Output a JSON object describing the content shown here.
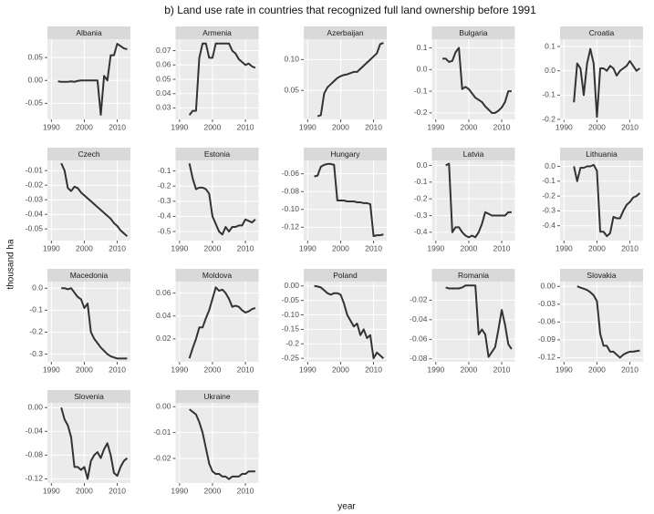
{
  "title": "b) Land use rate in countries that recognized full land ownership before 1991",
  "xlabel": "year",
  "ylabel": "thousand ha",
  "chart_data": [
    {
      "type": "line",
      "title": "Albania",
      "x": [
        1992,
        1993,
        1994,
        1995,
        1996,
        1997,
        1998,
        1999,
        2000,
        2001,
        2002,
        2003,
        2004,
        2005,
        2006,
        2007,
        2008,
        2009,
        2010,
        2011,
        2012,
        2013
      ],
      "values": [
        -0.002,
        -0.003,
        -0.003,
        -0.003,
        -0.002,
        -0.003,
        -0.001,
        0,
        0,
        0,
        0,
        0,
        0,
        -0.075,
        0.01,
        0,
        0.055,
        0.055,
        0.08,
        0.075,
        0.07,
        0.068
      ],
      "xlim": [
        1988.8,
        2014
      ],
      "xticks": [
        1990,
        2000,
        2010
      ],
      "ylim": [
        -0.085,
        0.09
      ],
      "yticks": [
        -0.05,
        {
          "value": 0,
          "label": "0.00"
        },
        0.05
      ]
    },
    {
      "type": "line",
      "title": "Armenia",
      "x": [
        1993,
        1994,
        1995,
        1996,
        1997,
        1998,
        1999,
        2000,
        2001,
        2002,
        2003,
        2004,
        2005,
        2006,
        2007,
        2008,
        2009,
        2010,
        2011,
        2012,
        2013
      ],
      "values": [
        0.025,
        0.028,
        0.028,
        0.065,
        0.075,
        0.075,
        0.065,
        0.065,
        0.075,
        0.075,
        0.075,
        0.075,
        0.075,
        0.07,
        0.068,
        0.064,
        0.062,
        0.06,
        0.061,
        0.059,
        0.058
      ],
      "xlim": [
        1988.8,
        2014
      ],
      "xticks": [
        1990,
        2000,
        2010
      ],
      "ylim": [
        0.022,
        0.078
      ],
      "yticks": [
        0.03,
        0.04,
        0.05,
        0.06,
        0.07
      ]
    },
    {
      "type": "line",
      "title": "Azerbaijan",
      "x": [
        1993,
        1994,
        1995,
        1996,
        1997,
        1998,
        1999,
        2000,
        2001,
        2002,
        2003,
        2004,
        2005,
        2006,
        2007,
        2008,
        2009,
        2010,
        2011,
        2012,
        2013
      ],
      "values": [
        0.008,
        0.01,
        0.045,
        0.055,
        0.06,
        0.065,
        0.07,
        0.073,
        0.075,
        0.076,
        0.078,
        0.08,
        0.08,
        0.085,
        0.09,
        0.095,
        0.1,
        0.105,
        0.11,
        0.125,
        0.127
      ],
      "xlim": [
        1988.8,
        2014
      ],
      "xticks": [
        1990,
        2000,
        2010
      ],
      "ylim": [
        0.003,
        0.133
      ],
      "yticks": [
        0.05,
        {
          "value": 0.1,
          "label": "0.10"
        }
      ]
    },
    {
      "type": "line",
      "title": "Bulgaria",
      "x": [
        1992,
        1993,
        1994,
        1995,
        1996,
        1997,
        1998,
        1999,
        2000,
        2001,
        2002,
        2003,
        2004,
        2005,
        2006,
        2007,
        2008,
        2009,
        2010,
        2011,
        2012,
        2013
      ],
      "values": [
        0.05,
        0.05,
        0.035,
        0.04,
        0.08,
        0.1,
        -0.09,
        -0.08,
        -0.09,
        -0.11,
        -0.13,
        -0.14,
        -0.15,
        -0.17,
        -0.185,
        -0.2,
        -0.2,
        -0.19,
        -0.175,
        -0.15,
        -0.1,
        -0.1
      ],
      "xlim": [
        1988.8,
        2014
      ],
      "xticks": [
        1990,
        2000,
        2010
      ],
      "ylim": [
        -0.23,
        0.14
      ],
      "yticks": [
        -0.2,
        -0.1,
        {
          "value": 0,
          "label": "0.0"
        },
        0.1
      ]
    },
    {
      "type": "line",
      "title": "Croatia",
      "x": [
        1993,
        1994,
        1995,
        1996,
        1997,
        1998,
        1999,
        2000,
        2001,
        2002,
        2003,
        2004,
        2005,
        2006,
        2007,
        2008,
        2009,
        2010,
        2011,
        2012,
        2013
      ],
      "values": [
        -0.13,
        0.03,
        0.01,
        -0.1,
        0.03,
        0.09,
        0.03,
        -0.19,
        0.01,
        0.01,
        0,
        0.02,
        0.01,
        -0.02,
        0,
        0.01,
        0.02,
        0.04,
        0.02,
        0,
        0.01
      ],
      "xlim": [
        1988.8,
        2014
      ],
      "xticks": [
        1990,
        2000,
        2010
      ],
      "ylim": [
        -0.2,
        0.13
      ],
      "yticks": [
        -0.2,
        -0.1,
        {
          "value": 0,
          "label": "0.0"
        },
        0.1
      ]
    },
    {
      "type": "line",
      "title": "Czech",
      "x": [
        1993,
        1994,
        1995,
        1996,
        1997,
        1998,
        1999,
        2000,
        2001,
        2002,
        2003,
        2004,
        2005,
        2006,
        2007,
        2008,
        2009,
        2010,
        2011,
        2012,
        2013
      ],
      "values": [
        -0.005,
        -0.01,
        -0.022,
        -0.024,
        -0.021,
        -0.022,
        -0.025,
        -0.027,
        -0.029,
        -0.031,
        -0.033,
        -0.035,
        -0.037,
        -0.039,
        -0.041,
        -0.043,
        -0.046,
        -0.048,
        -0.051,
        -0.053,
        -0.055
      ],
      "xlim": [
        1988.8,
        2014
      ],
      "xticks": [
        1990,
        2000,
        2010
      ],
      "ylim": [
        -0.058,
        -0.003
      ],
      "yticks": [
        -0.05,
        -0.04,
        -0.03,
        -0.02,
        -0.01
      ]
    },
    {
      "type": "line",
      "title": "Estonia",
      "x": [
        1993,
        1994,
        1995,
        1996,
        1997,
        1998,
        1999,
        2000,
        2001,
        2002,
        2003,
        2004,
        2005,
        2006,
        2007,
        2008,
        2009,
        2010,
        2011,
        2012,
        2013
      ],
      "values": [
        -0.05,
        -0.15,
        -0.22,
        -0.21,
        -0.21,
        -0.22,
        -0.25,
        -0.4,
        -0.45,
        -0.5,
        -0.52,
        -0.47,
        -0.5,
        -0.47,
        -0.47,
        -0.46,
        -0.46,
        -0.42,
        -0.43,
        -0.44,
        -0.42
      ],
      "xlim": [
        1988.8,
        2014
      ],
      "xticks": [
        1990,
        2000,
        2010
      ],
      "ylim": [
        -0.56,
        -0.03
      ],
      "yticks": [
        -0.5,
        -0.4,
        -0.3,
        -0.2,
        -0.1
      ]
    },
    {
      "type": "line",
      "title": "Hungary",
      "x": [
        1992,
        1993,
        1994,
        1995,
        1996,
        1997,
        1998,
        1999,
        2000,
        2001,
        2002,
        2003,
        2004,
        2005,
        2006,
        2007,
        2008,
        2009,
        2010,
        2011,
        2012,
        2013
      ],
      "values": [
        -0.063,
        -0.062,
        -0.052,
        -0.05,
        -0.049,
        -0.049,
        -0.05,
        -0.09,
        -0.09,
        -0.09,
        -0.091,
        -0.091,
        -0.091,
        -0.092,
        -0.092,
        -0.093,
        -0.093,
        -0.094,
        -0.13,
        -0.129,
        -0.129,
        -0.128
      ],
      "xlim": [
        1988.8,
        2014
      ],
      "xticks": [
        1990,
        2000,
        2010
      ],
      "ylim": [
        -0.135,
        -0.045
      ],
      "yticks": [
        -0.12,
        {
          "value": -0.1,
          "label": "-0.10"
        },
        -0.08,
        -0.06
      ]
    },
    {
      "type": "line",
      "title": "Latvia",
      "x": [
        1993,
        1994,
        1995,
        1996,
        1997,
        1998,
        1999,
        2000,
        2001,
        2002,
        2003,
        2004,
        2005,
        2006,
        2007,
        2008,
        2009,
        2010,
        2011,
        2012,
        2013
      ],
      "values": [
        0,
        0.01,
        -0.4,
        -0.37,
        -0.37,
        -0.4,
        -0.42,
        -0.43,
        -0.42,
        -0.43,
        -0.4,
        -0.35,
        -0.28,
        -0.29,
        -0.3,
        -0.3,
        -0.3,
        -0.3,
        -0.3,
        -0.28,
        -0.28
      ],
      "xlim": [
        1988.8,
        2014
      ],
      "xticks": [
        1990,
        2000,
        2010
      ],
      "ylim": [
        -0.45,
        0.03
      ],
      "yticks": [
        -0.4,
        -0.3,
        -0.2,
        -0.1,
        {
          "value": 0,
          "label": "0.0"
        }
      ]
    },
    {
      "type": "line",
      "title": "Lithuania",
      "x": [
        1993,
        1994,
        1995,
        1996,
        1997,
        1998,
        1999,
        2000,
        2001,
        2002,
        2003,
        2004,
        2005,
        2006,
        2007,
        2008,
        2009,
        2010,
        2011,
        2012,
        2013
      ],
      "values": [
        0,
        -0.1,
        -0.01,
        -0.01,
        0,
        0,
        0.01,
        -0.03,
        -0.44,
        -0.44,
        -0.47,
        -0.45,
        -0.34,
        -0.35,
        -0.35,
        -0.3,
        -0.26,
        -0.24,
        -0.21,
        -0.2,
        -0.18
      ],
      "xlim": [
        1988.8,
        2014
      ],
      "xticks": [
        1990,
        2000,
        2010
      ],
      "ylim": [
        -0.5,
        0.04
      ],
      "yticks": [
        -0.4,
        -0.3,
        -0.2,
        -0.1,
        {
          "value": 0,
          "label": "0.0"
        }
      ]
    },
    {
      "type": "line",
      "title": "Macedonia",
      "x": [
        1993,
        1994,
        1995,
        1996,
        1997,
        1998,
        1999,
        2000,
        2001,
        2002,
        2003,
        2004,
        2005,
        2006,
        2007,
        2008,
        2009,
        2010,
        2011,
        2012,
        2013
      ],
      "values": [
        0,
        0,
        -0.005,
        0,
        -0.02,
        -0.04,
        -0.05,
        -0.09,
        -0.07,
        -0.2,
        -0.23,
        -0.25,
        -0.27,
        -0.285,
        -0.3,
        -0.31,
        -0.315,
        -0.32,
        -0.32,
        -0.32,
        -0.32
      ],
      "xlim": [
        1988.8,
        2014
      ],
      "xticks": [
        1990,
        2000,
        2010
      ],
      "ylim": [
        -0.335,
        0.03
      ],
      "yticks": [
        -0.3,
        -0.2,
        -0.1,
        {
          "value": 0,
          "label": "0.0"
        }
      ]
    },
    {
      "type": "line",
      "title": "Moldova",
      "x": [
        1993,
        1994,
        1995,
        1996,
        1997,
        1998,
        1999,
        2000,
        2001,
        2002,
        2003,
        2004,
        2005,
        2006,
        2007,
        2008,
        2009,
        2010,
        2011,
        2012,
        2013
      ],
      "values": [
        0.003,
        0.012,
        0.02,
        0.03,
        0.03,
        0.038,
        0.045,
        0.055,
        0.065,
        0.062,
        0.063,
        0.06,
        0.055,
        0.048,
        0.049,
        0.048,
        0.045,
        0.043,
        0.044,
        0.046,
        0.047
      ],
      "xlim": [
        1988.8,
        2014
      ],
      "xticks": [
        1990,
        2000,
        2010
      ],
      "ylim": [
        0,
        0.07
      ],
      "yticks": [
        0.02,
        0.04,
        0.06
      ]
    },
    {
      "type": "line",
      "title": "Poland",
      "x": [
        1992,
        1993,
        1994,
        1995,
        1996,
        1997,
        1998,
        1999,
        2000,
        2001,
        2002,
        2003,
        2004,
        2005,
        2006,
        2007,
        2008,
        2009,
        2010,
        2011,
        2012,
        2013
      ],
      "values": [
        0,
        -0.002,
        -0.005,
        -0.015,
        -0.025,
        -0.03,
        -0.025,
        -0.025,
        -0.03,
        -0.06,
        -0.1,
        -0.12,
        -0.14,
        -0.13,
        -0.17,
        -0.15,
        -0.18,
        -0.17,
        -0.25,
        -0.23,
        -0.24,
        -0.25
      ],
      "xlim": [
        1988.8,
        2014
      ],
      "xticks": [
        1990,
        2000,
        2010
      ],
      "ylim": [
        -0.262,
        0.015
      ],
      "yticks": [
        -0.25,
        -0.2,
        -0.15,
        {
          "value": -0.1,
          "label": "-0.10"
        },
        -0.05,
        {
          "value": 0,
          "label": "0.00"
        }
      ]
    },
    {
      "type": "line",
      "title": "Romania",
      "x": [
        1993,
        1994,
        1995,
        1996,
        1997,
        1998,
        1999,
        2000,
        2001,
        2002,
        2003,
        2004,
        2005,
        2006,
        2007,
        2008,
        2009,
        2010,
        2011,
        2012,
        2013
      ],
      "values": [
        -0.007,
        -0.008,
        -0.008,
        -0.008,
        -0.008,
        -0.007,
        -0.005,
        -0.005,
        -0.005,
        -0.005,
        -0.055,
        -0.05,
        -0.055,
        -0.078,
        -0.073,
        -0.068,
        -0.05,
        -0.03,
        -0.045,
        -0.065,
        -0.07
      ],
      "xlim": [
        1988.8,
        2014
      ],
      "xticks": [
        1990,
        2000,
        2010
      ],
      "ylim": [
        -0.083,
        -0.001
      ],
      "yticks": [
        -0.08,
        -0.06,
        -0.04,
        -0.02
      ]
    },
    {
      "type": "line",
      "title": "Slovakia",
      "x": [
        1994,
        1995,
        1996,
        1997,
        1998,
        1999,
        2000,
        2001,
        2002,
        2003,
        2004,
        2005,
        2006,
        2007,
        2008,
        2009,
        2010,
        2011,
        2012,
        2013
      ],
      "values": [
        0,
        -0.002,
        -0.004,
        -0.006,
        -0.01,
        -0.015,
        -0.025,
        -0.08,
        -0.1,
        -0.1,
        -0.11,
        -0.11,
        -0.115,
        -0.12,
        -0.115,
        -0.112,
        -0.11,
        -0.11,
        -0.109,
        -0.108
      ],
      "xlim": [
        1988.8,
        2014
      ],
      "xticks": [
        1990,
        2000,
        2010
      ],
      "ylim": [
        -0.127,
        0.008
      ],
      "yticks": [
        -0.12,
        -0.09,
        -0.06,
        -0.03,
        {
          "value": 0,
          "label": "0.00"
        }
      ]
    },
    {
      "type": "line",
      "title": "Slovenia",
      "x": [
        1993,
        1994,
        1995,
        1996,
        1997,
        1998,
        1999,
        2000,
        2001,
        2002,
        2003,
        2004,
        2005,
        2006,
        2007,
        2008,
        2009,
        2010,
        2011,
        2012,
        2013
      ],
      "values": [
        0,
        -0.02,
        -0.03,
        -0.05,
        -0.1,
        -0.1,
        -0.105,
        -0.1,
        -0.12,
        -0.09,
        -0.08,
        -0.075,
        -0.085,
        -0.07,
        -0.06,
        -0.08,
        -0.11,
        -0.115,
        -0.1,
        -0.09,
        -0.085
      ],
      "xlim": [
        1988.8,
        2014
      ],
      "xticks": [
        1990,
        2000,
        2010
      ],
      "ylim": [
        -0.127,
        0.008
      ],
      "yticks": [
        -0.12,
        -0.08,
        -0.04,
        {
          "value": 0,
          "label": "0.00"
        }
      ]
    },
    {
      "type": "line",
      "title": "Ukraine",
      "x": [
        1993,
        1994,
        1995,
        1996,
        1997,
        1998,
        1999,
        2000,
        2001,
        2002,
        2003,
        2004,
        2005,
        2006,
        2007,
        2008,
        2009,
        2010,
        2011,
        2012,
        2013
      ],
      "values": [
        -0.001,
        -0.002,
        -0.003,
        -0.006,
        -0.01,
        -0.016,
        -0.022,
        -0.025,
        -0.026,
        -0.026,
        -0.027,
        -0.027,
        -0.028,
        -0.027,
        -0.027,
        -0.027,
        -0.026,
        -0.026,
        -0.025,
        -0.025,
        -0.025
      ],
      "xlim": [
        1988.8,
        2014
      ],
      "xticks": [
        1990,
        2000,
        2010
      ],
      "ylim": [
        -0.0295,
        0.0015
      ],
      "yticks": [
        -0.02,
        -0.01,
        {
          "value": 0,
          "label": "0.00"
        }
      ]
    }
  ]
}
